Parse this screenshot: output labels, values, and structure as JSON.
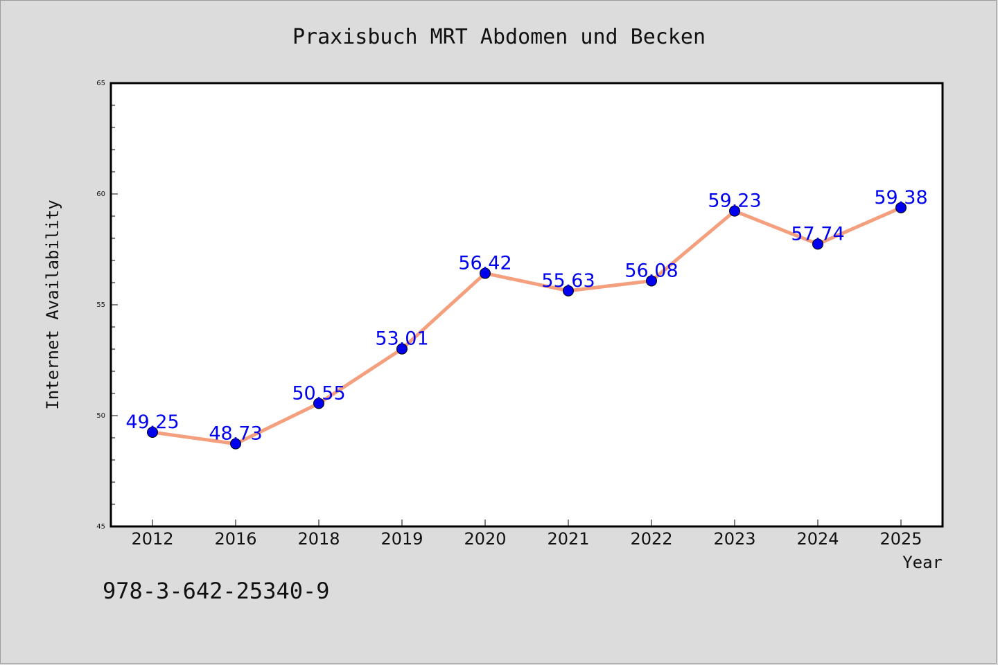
{
  "chart_data": {
    "type": "line",
    "title": "Praxisbuch MRT Abdomen und Becken",
    "xlabel": "Year",
    "ylabel": "Internet Availability",
    "categories": [
      "2012",
      "2016",
      "2018",
      "2019",
      "2020",
      "2021",
      "2022",
      "2023",
      "2024",
      "2025"
    ],
    "series": [
      {
        "values": [
          49.25,
          48.73,
          50.55,
          53.01,
          56.42,
          55.63,
          56.08,
          59.23,
          57.74,
          59.38
        ],
        "data_labels": [
          "49.25",
          "48.73",
          "50.55",
          "53.01",
          "56.42",
          "55.63",
          "56.08",
          "59.23",
          "57.74",
          "59.38"
        ],
        "line_color": "#f4a07e",
        "marker_color": "#0000ee",
        "label_color": "#0000ee"
      }
    ],
    "ylim": [
      45,
      65
    ],
    "yticks": [
      "45",
      "50",
      "55",
      "60",
      "65"
    ],
    "grid": false,
    "legend": "none",
    "background_color": "#dcdcdc",
    "plot_background_color": "#ffffff",
    "footer_text": "978-3-642-25340-9"
  }
}
